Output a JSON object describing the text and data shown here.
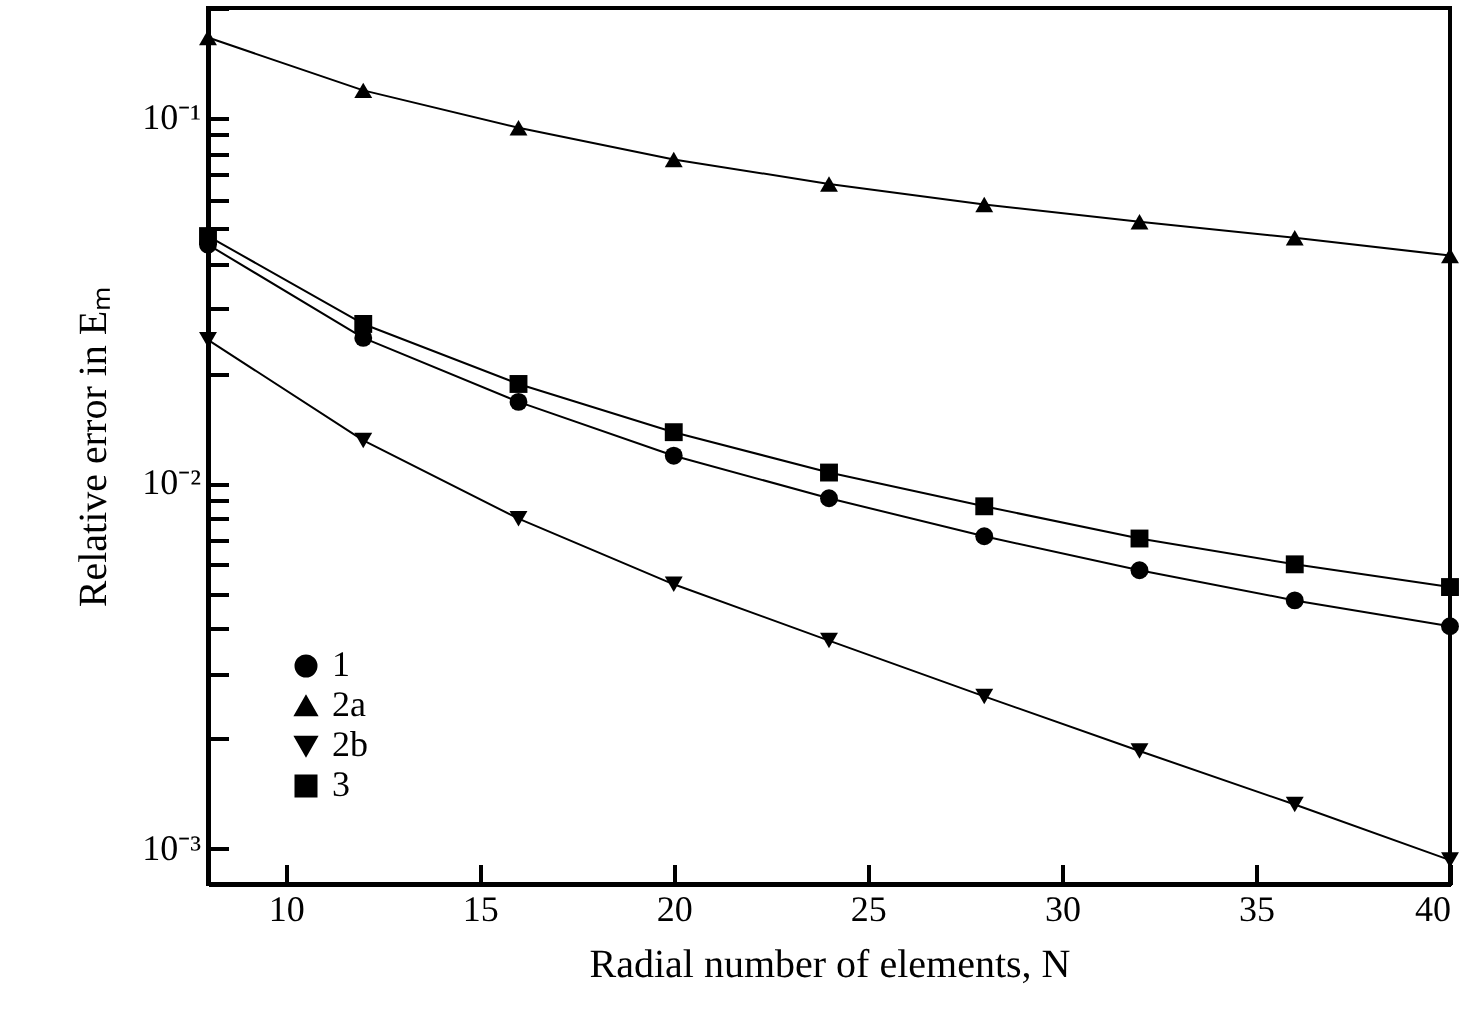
{
  "chart_data": {
    "type": "line",
    "xlabel": "Radial number of elements, N",
    "ylabel": "Relative error in Eₘ",
    "x": [
      8,
      12,
      16,
      20,
      24,
      28,
      32,
      36,
      40
    ],
    "series": [
      {
        "name": "1",
        "color": "#000000",
        "marker": "circle",
        "values": [
          0.045,
          0.025,
          0.0167,
          0.0119,
          0.0091,
          0.00716,
          0.00578,
          0.00478,
          0.00406
        ]
      },
      {
        "name": "2a",
        "color": "#000000",
        "marker": "triangle",
        "values": [
          0.166,
          0.119,
          0.094,
          0.077,
          0.066,
          0.058,
          0.052,
          0.047,
          0.042
        ]
      },
      {
        "name": "2b",
        "color": "#000000",
        "marker": "triangle-down",
        "values": [
          0.0247,
          0.0131,
          0.008,
          0.00529,
          0.00371,
          0.00261,
          0.00185,
          0.00132,
          0.00093
        ]
      },
      {
        "name": "3",
        "color": "#000000",
        "marker": "square",
        "values": [
          0.0475,
          0.0273,
          0.0187,
          0.0138,
          0.0107,
          0.00865,
          0.00706,
          0.006,
          0.0052
        ]
      }
    ],
    "xlim": [
      8,
      40
    ],
    "xticks": [
      10,
      15,
      20,
      25,
      30,
      35,
      40
    ],
    "ylim": [
      0.0008,
      0.2
    ],
    "log": "y",
    "yticks": [
      {
        "value": 0.001,
        "label": "10⁻³"
      },
      {
        "value": 0.002,
        "label": null
      },
      {
        "value": 0.003,
        "label": null
      },
      {
        "value": 0.004,
        "label": null
      },
      {
        "value": 0.005,
        "label": null
      },
      {
        "value": 0.006,
        "label": null
      },
      {
        "value": 0.007,
        "label": null
      },
      {
        "value": 0.008,
        "label": null
      },
      {
        "value": 0.009,
        "label": null
      },
      {
        "value": 0.01,
        "label": "10⁻²"
      },
      {
        "value": 0.02,
        "label": null
      },
      {
        "value": 0.03,
        "label": null
      },
      {
        "value": 0.04,
        "label": null
      },
      {
        "value": 0.05,
        "label": null
      },
      {
        "value": 0.06,
        "label": null
      },
      {
        "value": 0.07,
        "label": null
      },
      {
        "value": 0.08,
        "label": null
      },
      {
        "value": 0.09,
        "label": null
      },
      {
        "value": 0.1,
        "label": "10⁻¹"
      },
      {
        "value": 0.2,
        "label": null
      }
    ],
    "grid": false,
    "legend": "bottom left",
    "line_style": "solid"
  }
}
